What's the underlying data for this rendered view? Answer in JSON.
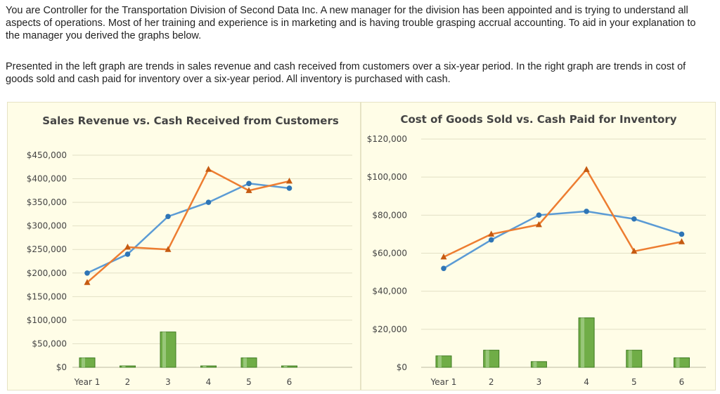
{
  "text": {
    "paragraph1": "You are Controller for the Transportation Division of Second Data Inc. A new manager for the division has been appointed and is trying to understand all aspects of operations. Most of her training and experience is in marketing and is having trouble grasping accrual accounting. To aid in your explanation to the manager you derived the graphs below.",
    "paragraph2": "Presented in the left graph are trends in sales revenue and cash received from customers over a six-year period. In the right graph are trends in cost of goods sold and cash paid for inventory over a six-year period. All inventory is purchased with cash."
  },
  "colors": {
    "blue_series": "#5b9bd5",
    "blue_marker": "#2e75b6",
    "orange_series": "#ed7d31",
    "orange_marker": "#c55a11",
    "bar_fill": "#70ad47",
    "bar_dark": "#3f7a22",
    "panel_bg": "#fffde7"
  },
  "chart_data": [
    {
      "type": "line",
      "title": "Sales Revenue vs. Cash Received from Customers",
      "categories": [
        "Year 1",
        "2",
        "3",
        "4",
        "5",
        "6"
      ],
      "yticks": [
        "$0",
        "$50,000",
        "$100,000",
        "$150,000",
        "$200,000",
        "$250,000",
        "$300,000",
        "$350,000",
        "$400,000",
        "$450,000"
      ],
      "ylim": [
        0,
        450000
      ],
      "grid": true,
      "series": [
        {
          "marker": "circle",
          "color": "#5b9bd5",
          "values": [
            200000,
            240000,
            320000,
            350000,
            390000,
            380000
          ]
        },
        {
          "marker": "triangle",
          "color": "#ed7d31",
          "values": [
            180000,
            255000,
            250000,
            420000,
            375000,
            395000
          ]
        },
        {
          "type": "bar",
          "color": "#70ad47",
          "values": [
            20000,
            2500,
            75000,
            2500,
            20000,
            2500
          ]
        }
      ]
    },
    {
      "type": "line",
      "title": "Cost of Goods Sold vs. Cash Paid for Inventory",
      "categories": [
        "Year 1",
        "2",
        "3",
        "4",
        "5",
        "6"
      ],
      "yticks": [
        "$0",
        "$20,000",
        "$40,000",
        "$60,000",
        "$80,000",
        "$100,000",
        "$120,000"
      ],
      "ylim": [
        0,
        120000
      ],
      "grid": true,
      "series": [
        {
          "marker": "circle",
          "color": "#5b9bd5",
          "values": [
            52000,
            67000,
            80000,
            82000,
            78000,
            70000
          ]
        },
        {
          "marker": "triangle",
          "color": "#ed7d31",
          "values": [
            58000,
            70000,
            75000,
            104000,
            61000,
            66000
          ]
        },
        {
          "type": "bar",
          "color": "#70ad47",
          "values": [
            6000,
            9000,
            3000,
            26000,
            9000,
            5000
          ]
        }
      ]
    }
  ]
}
